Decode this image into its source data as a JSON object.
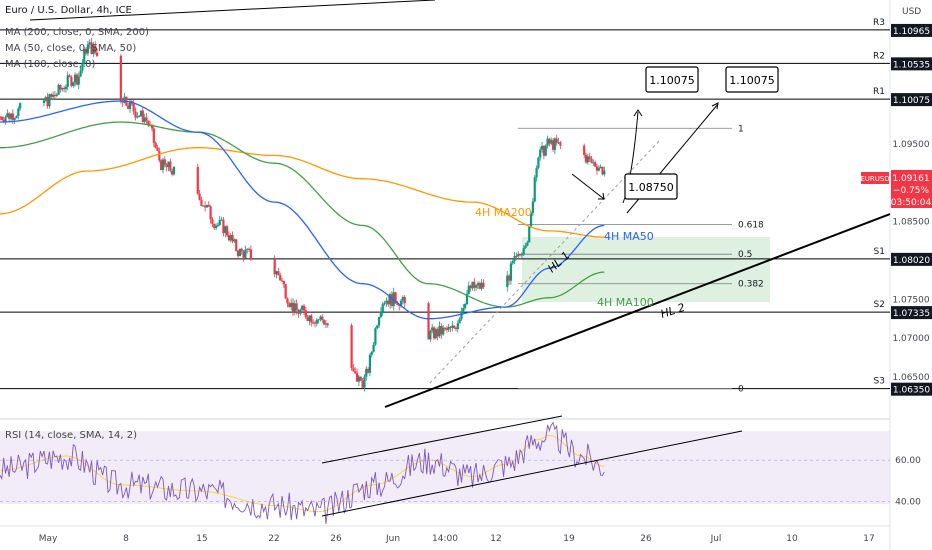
{
  "header": {
    "symbol_line": "Euro / U.S. Dollar, 4h, ICE",
    "ma200_line": "MA (200, close, 0, SMA, 200)",
    "ma50_line": "MA (50, close, 0, SMA, 50)",
    "ma100_line": "MA (100, close, 0)",
    "currency": "USD"
  },
  "price_tag": {
    "symbol": "EURUSD",
    "price": "1.09161",
    "change": "−0.75%",
    "countdown": "03:50:04",
    "value": 1.09161
  },
  "price_axis": {
    "ticks": [
      "1.09500",
      "1.08500",
      "1.07500",
      "1.07000",
      "1.06500"
    ],
    "tick_values": [
      1.095,
      1.085,
      1.075,
      1.07,
      1.065
    ]
  },
  "levels": [
    {
      "name": "R3",
      "label": "1.10965",
      "value": 1.10965
    },
    {
      "name": "R2",
      "label": "1.10535",
      "value": 1.10535
    },
    {
      "name": "R1",
      "label": "1.10075",
      "value": 1.10075
    },
    {
      "name": "S1",
      "label": "1.08020",
      "value": 1.0802
    },
    {
      "name": "S2",
      "label": "1.07335",
      "value": 1.07335
    },
    {
      "name": "S3",
      "label": "1.06350",
      "value": 1.0635
    }
  ],
  "fib": [
    {
      "label": "1",
      "value": 1.097
    },
    {
      "label": "0.618",
      "value": 1.0846
    },
    {
      "label": "0.5",
      "value": 1.0808
    },
    {
      "label": "0.382",
      "value": 1.077
    },
    {
      "label": "0",
      "value": 1.0635
    }
  ],
  "annotations": {
    "target_1": "1.10075",
    "target_2": "1.10075",
    "pullback": "1.08750",
    "hl1": "HL  1",
    "hl2": "HL  2",
    "ma200": "4H MA200",
    "ma50": "4H MA50",
    "ma100": "4H MA100"
  },
  "rsi": {
    "label": "RSI (14, close, SMA, 14, 2)",
    "ticks": [
      "60.00",
      "40.00"
    ],
    "tick_values": [
      60,
      40
    ]
  },
  "time_axis": {
    "labels": [
      "May",
      "8",
      "15",
      "22",
      "26",
      "Jun",
      "14:00",
      "12",
      "19",
      "26",
      "Jul",
      "10",
      "17"
    ]
  },
  "colors": {
    "bull": "#089981",
    "bear": "#f23645",
    "ma200": "#ff9800",
    "ma50": "#2962ff",
    "ma100": "#43a047",
    "rsi": "#7e57c2",
    "rsi_ma": "#fdd835",
    "price_tag": "#f23645",
    "level_box": "#131722",
    "zone": "#c8e6c9"
  },
  "chart_data": {
    "type": "candlestick",
    "title": "Euro / U.S. Dollar, 4h, ICE",
    "x_range": [
      "Apr 27",
      "Jul 17"
    ],
    "ylim": [
      1.0605,
      1.1135
    ],
    "price_series": [
      [
        "Apr 27",
        1.0985
      ],
      [
        "May 1",
        1.1005
      ],
      [
        "May 4",
        1.1035
      ],
      [
        "May 5",
        1.1075
      ],
      [
        "May 8",
        1.101
      ],
      [
        "May 10",
        1.0985
      ],
      [
        "May 12",
        1.092
      ],
      [
        "May 15",
        1.088
      ],
      [
        "May 17",
        1.0845
      ],
      [
        "May 19",
        1.081
      ],
      [
        "May 22",
        1.0785
      ],
      [
        "May 24",
        1.0735
      ],
      [
        "May 26",
        1.0725
      ],
      [
        "May 30",
        1.0645
      ],
      [
        "Jun 1",
        1.075
      ],
      [
        "Jun 2",
        1.075
      ],
      [
        "Jun 5",
        1.0705
      ],
      [
        "Jun 7",
        1.071
      ],
      [
        "Jun 9",
        1.0765
      ],
      [
        "Jun 12",
        1.0775
      ],
      [
        "Jun 13",
        1.08
      ],
      [
        "Jun 14",
        1.083
      ],
      [
        "Jun 15",
        1.0935
      ],
      [
        "Jun 16",
        1.095
      ],
      [
        "Jun 19",
        1.0935
      ],
      [
        "Jun 20",
        1.0925
      ],
      [
        "Jun 21",
        1.0916
      ]
    ],
    "ma200_series": [
      [
        "Apr 27",
        1.086
      ],
      [
        "May 5",
        1.0915
      ],
      [
        "May 15",
        1.0945
      ],
      [
        "May 22",
        1.0935
      ],
      [
        "May 30",
        1.0905
      ],
      [
        "Jun 9",
        1.0875
      ],
      [
        "Jun 16",
        1.0838
      ],
      [
        "Jun 21",
        1.083
      ]
    ],
    "ma50_series": [
      [
        "Apr 27",
        1.0978
      ],
      [
        "May 8",
        1.1005
      ],
      [
        "May 15",
        1.0965
      ],
      [
        "May 22",
        1.0875
      ],
      [
        "May 30",
        1.077
      ],
      [
        "Jun 5",
        1.0725
      ],
      [
        "Jun 12",
        1.074
      ],
      [
        "Jun 16",
        1.079
      ],
      [
        "Jun 21",
        1.0845
      ]
    ],
    "ma100_series": [
      [
        "Apr 27",
        1.0945
      ],
      [
        "May 8",
        1.0978
      ],
      [
        "May 15",
        1.0965
      ],
      [
        "May 22",
        1.0925
      ],
      [
        "May 30",
        1.0845
      ],
      [
        "Jun 5",
        1.077
      ],
      [
        "Jun 12",
        1.074
      ],
      [
        "Jun 16",
        1.0752
      ],
      [
        "Jun 21",
        1.0785
      ]
    ],
    "rsi_ylim": [
      28,
      80
    ],
    "rsi_series": [
      [
        "Apr 27",
        55
      ],
      [
        "May 3",
        62
      ],
      [
        "May 8",
        48
      ],
      [
        "May 15",
        45
      ],
      [
        "May 22",
        38
      ],
      [
        "May 26",
        35
      ],
      [
        "May 31",
        48
      ],
      [
        "Jun 5",
        60
      ],
      [
        "Jun 9",
        52
      ],
      [
        "Jun 12",
        58
      ],
      [
        "Jun 15",
        70
      ],
      [
        "Jun 16",
        72
      ],
      [
        "Jun 19",
        62
      ],
      [
        "Jun 21",
        57
      ]
    ]
  }
}
